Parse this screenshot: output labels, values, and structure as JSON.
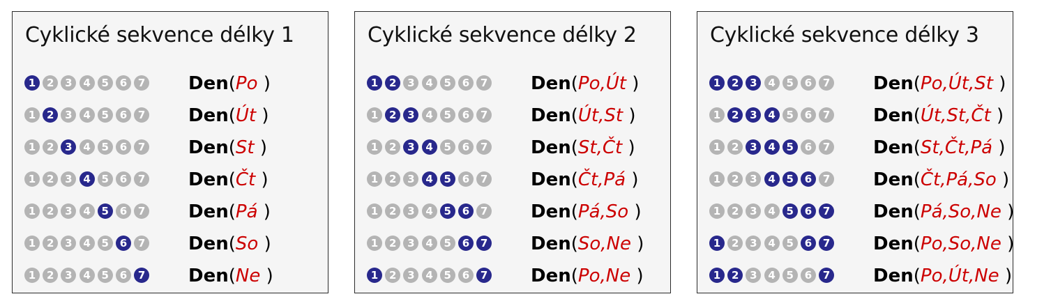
{
  "colors": {
    "active": "#28288c",
    "inactive": "#b4b4b4",
    "argument": "#cc0000"
  },
  "panels": [
    {
      "title": "Cyklické sekvence délky 1",
      "rows": [
        {
          "active": [
            1
          ],
          "fn": "Den",
          "args": "Po"
        },
        {
          "active": [
            2
          ],
          "fn": "Den",
          "args": "Út"
        },
        {
          "active": [
            3
          ],
          "fn": "Den",
          "args": "St"
        },
        {
          "active": [
            4
          ],
          "fn": "Den",
          "args": "Čt"
        },
        {
          "active": [
            5
          ],
          "fn": "Den",
          "args": "Pá"
        },
        {
          "active": [
            6
          ],
          "fn": "Den",
          "args": "So"
        },
        {
          "active": [
            7
          ],
          "fn": "Den",
          "args": "Ne"
        }
      ]
    },
    {
      "title": "Cyklické sekvence délky 2",
      "rows": [
        {
          "active": [
            1,
            2
          ],
          "fn": "Den",
          "args": "Po,Út"
        },
        {
          "active": [
            2,
            3
          ],
          "fn": "Den",
          "args": "Út,St"
        },
        {
          "active": [
            3,
            4
          ],
          "fn": "Den",
          "args": "St,Čt"
        },
        {
          "active": [
            4,
            5
          ],
          "fn": "Den",
          "args": "Čt,Pá"
        },
        {
          "active": [
            5,
            6
          ],
          "fn": "Den",
          "args": "Pá,So"
        },
        {
          "active": [
            6,
            7
          ],
          "fn": "Den",
          "args": "So,Ne"
        },
        {
          "active": [
            1,
            7
          ],
          "fn": "Den",
          "args": "Po,Ne"
        }
      ]
    },
    {
      "title": "Cyklické sekvence délky 3",
      "rows": [
        {
          "active": [
            1,
            2,
            3
          ],
          "fn": "Den",
          "args": "Po,Út,St"
        },
        {
          "active": [
            2,
            3,
            4
          ],
          "fn": "Den",
          "args": "Út,St,Čt"
        },
        {
          "active": [
            3,
            4,
            5
          ],
          "fn": "Den",
          "args": "St,Čt,Pá"
        },
        {
          "active": [
            4,
            5,
            6
          ],
          "fn": "Den",
          "args": "Čt,Pá,So"
        },
        {
          "active": [
            5,
            6,
            7
          ],
          "fn": "Den",
          "args": "Pá,So,Ne"
        },
        {
          "active": [
            1,
            6,
            7
          ],
          "fn": "Den",
          "args": "Po,So,Ne"
        },
        {
          "active": [
            1,
            2,
            7
          ],
          "fn": "Den",
          "args": "Po,Út,Ne"
        }
      ]
    }
  ]
}
